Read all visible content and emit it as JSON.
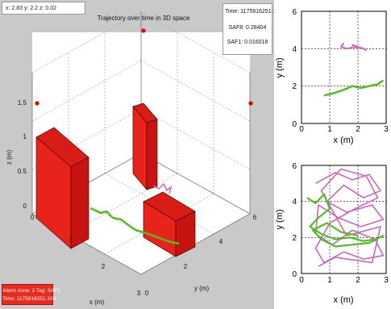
{
  "coordinate_readout": "x: 2.83 y: 2.2 z: 0.02",
  "main_plot": {
    "title": "Trajectory over time in 3D space",
    "z_axis_label": "z (m)",
    "x_axis_label": "x (m)",
    "y_axis_label": "y (m)",
    "z_ticks": [
      "0",
      "0.5",
      "1",
      "1.5"
    ],
    "x_ticks": [
      "0",
      "1",
      "2",
      "3"
    ],
    "y_ticks": [
      "0",
      "2",
      "4",
      "6"
    ]
  },
  "info_panel": {
    "time": "Time: 1175916251.108",
    "saf8": "SAF8: 0.28404",
    "saf1": "SAF1: 0.016018"
  },
  "alarm": {
    "line1": "Alarm zone: 2 Tag: SAF1",
    "line2": "Time: 1175916251.108"
  },
  "top_plot": {
    "xlabel": "x (m)",
    "ylabel": "y (m)",
    "x_ticks": [
      "0",
      "1",
      "2",
      "3"
    ],
    "y_ticks": [
      "0",
      "2",
      "4",
      "6"
    ]
  },
  "bottom_plot": {
    "xlabel": "x (m)",
    "ylabel": "y (m)",
    "x_ticks": [
      "0",
      "1",
      "2",
      "3"
    ],
    "y_ticks": [
      "0",
      "2",
      "4",
      "6"
    ]
  },
  "colors": {
    "obstacle": "#e8231c",
    "track_green": "#55bb22",
    "track_pink": "#cc66bb",
    "marker": "#e00000"
  },
  "chart_data": [
    {
      "type": "line",
      "view": "top-down",
      "xlim": [
        0,
        3
      ],
      "ylim": [
        0,
        6
      ],
      "series": [
        {
          "color": "#cc66bb",
          "points": [
            [
              1.5,
              4.3
            ],
            [
              1.4,
              4.1
            ],
            [
              1.6,
              4.0
            ],
            [
              1.9,
              4.1
            ],
            [
              2.0,
              4.0
            ],
            [
              1.8,
              4.2
            ],
            [
              2.2,
              4.0
            ],
            [
              2.3,
              3.9
            ]
          ]
        },
        {
          "color": "#55bb22",
          "points": [
            [
              0.8,
              1.5
            ],
            [
              1.1,
              1.6
            ],
            [
              1.5,
              1.8
            ],
            [
              1.8,
              2.0
            ],
            [
              2.1,
              1.9
            ],
            [
              2.4,
              2.0
            ],
            [
              2.7,
              2.1
            ],
            [
              2.9,
              2.3
            ]
          ]
        }
      ]
    },
    {
      "type": "line",
      "view": "top-down",
      "xlim": [
        0,
        3
      ],
      "ylim": [
        0,
        6
      ],
      "series": [
        {
          "color": "#cc66bb",
          "points": [
            [
              0.5,
              5.0
            ],
            [
              1.2,
              5.6
            ],
            [
              1.8,
              5.2
            ],
            [
              2.4,
              5.5
            ],
            [
              2.8,
              4.6
            ],
            [
              2.2,
              4.2
            ],
            [
              1.5,
              4.9
            ],
            [
              0.9,
              4.0
            ],
            [
              1.6,
              3.4
            ],
            [
              2.5,
              3.8
            ],
            [
              2.9,
              3.0
            ],
            [
              2.1,
              2.6
            ],
            [
              1.3,
              3.1
            ],
            [
              0.6,
              3.8
            ],
            [
              0.5,
              2.2
            ],
            [
              1.1,
              1.6
            ],
            [
              1.8,
              2.4
            ],
            [
              2.6,
              1.9
            ],
            [
              2.9,
              1.0
            ],
            [
              2.2,
              0.8
            ],
            [
              1.5,
              1.2
            ],
            [
              0.8,
              0.6
            ],
            [
              0.5,
              1.4
            ],
            [
              1.0,
              2.8
            ],
            [
              1.9,
              3.6
            ],
            [
              2.7,
              4.2
            ],
            [
              2.3,
              5.4
            ],
            [
              1.4,
              5.8
            ],
            [
              0.7,
              4.6
            ],
            [
              1.6,
              2.1
            ],
            [
              2.8,
              2.6
            ],
            [
              2.5,
              0.6
            ],
            [
              1.2,
              0.9
            ],
            [
              0.6,
              0.4
            ]
          ]
        },
        {
          "color": "#55bb22",
          "points": [
            [
              0.2,
              4.2
            ],
            [
              0.5,
              3.9
            ],
            [
              0.8,
              4.4
            ],
            [
              1.0,
              3.6
            ],
            [
              0.6,
              3.1
            ],
            [
              0.3,
              2.6
            ],
            [
              0.7,
              2.2
            ],
            [
              1.2,
              1.9
            ],
            [
              1.7,
              2.0
            ],
            [
              2.2,
              1.8
            ],
            [
              2.6,
              1.9
            ],
            [
              2.9,
              2.1
            ],
            [
              2.4,
              1.7
            ],
            [
              1.8,
              1.6
            ],
            [
              1.2,
              1.5
            ],
            [
              0.7,
              1.9
            ],
            [
              0.4,
              2.4
            ],
            [
              0.9,
              2.8
            ],
            [
              1.4,
              2.3
            ],
            [
              2.0,
              2.1
            ]
          ]
        }
      ]
    }
  ]
}
